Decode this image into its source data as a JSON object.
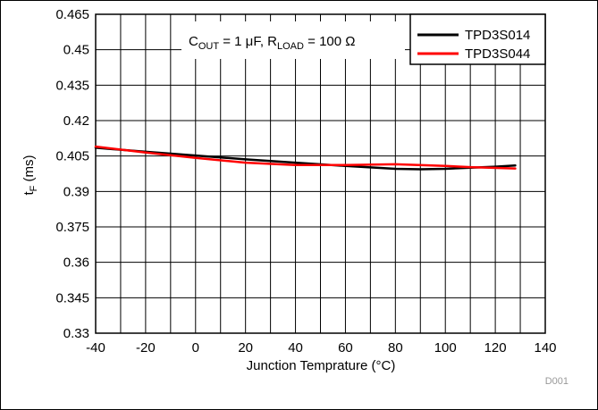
{
  "chart_data": {
    "type": "line",
    "xlabel_text": "Junction Temprature (",
    "xlabel_unit": "°C",
    "xlabel_close": ")",
    "ylabel_main": "t",
    "ylabel_sub": "F",
    "ylabel_unit": " (ms)",
    "xlim": [
      -40,
      140
    ],
    "ylim": [
      0.33,
      0.465
    ],
    "x_ticks": [
      -40,
      -20,
      0,
      20,
      40,
      60,
      80,
      100,
      120,
      140
    ],
    "x_tick_labels": [
      "-40",
      "-20",
      "0",
      "20",
      "40",
      "60",
      "80",
      "100",
      "120",
      "140"
    ],
    "y_ticks": [
      0.33,
      0.345,
      0.36,
      0.375,
      0.39,
      0.405,
      0.42,
      0.435,
      0.45,
      0.465
    ],
    "y_tick_labels": [
      "0.33",
      "0.345",
      "0.36",
      "0.375",
      "0.39",
      "0.405",
      "0.42",
      "0.435",
      "0.45",
      "0.465"
    ],
    "x_minor_step": 10,
    "grid": true,
    "legend_position": "top-right",
    "annotation": {
      "c_main": "C",
      "c_sub": "OUT",
      "c_value": " = 1 μF, R",
      "r_sub": "LOAD",
      "r_value": " = 100 Ω"
    },
    "figure_id": "D001",
    "series": [
      {
        "name": "TPD3S014",
        "color": "#000000",
        "x": [
          -40,
          -20,
          0,
          20,
          40,
          60,
          80,
          90,
          100,
          120,
          128
        ],
        "y": [
          0.4085,
          0.4068,
          0.4052,
          0.4036,
          0.4022,
          0.4008,
          0.3996,
          0.3994,
          0.3996,
          0.4005,
          0.401
        ]
      },
      {
        "name": "TPD3S044",
        "color": "#ff0000",
        "x": [
          -40,
          -20,
          0,
          20,
          40,
          60,
          80,
          100,
          110,
          128
        ],
        "y": [
          0.409,
          0.4065,
          0.4042,
          0.4022,
          0.4012,
          0.4012,
          0.4015,
          0.4008,
          0.4003,
          0.3997
        ]
      }
    ]
  }
}
